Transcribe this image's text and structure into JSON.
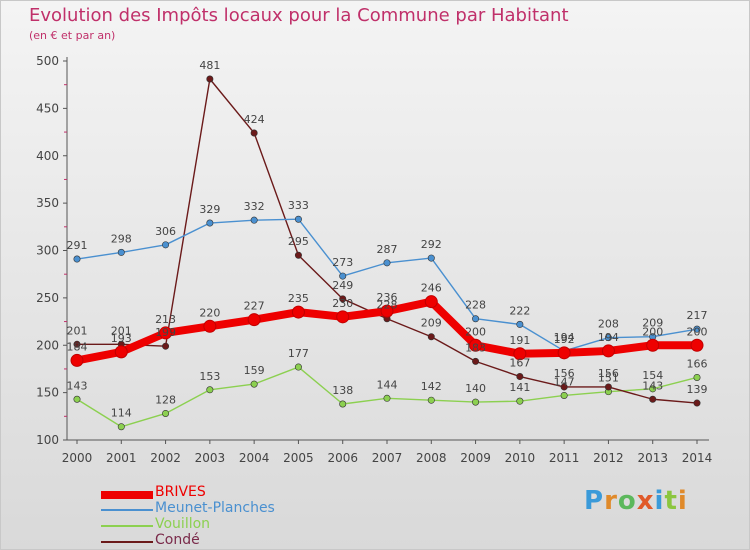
{
  "chart_data": {
    "type": "line",
    "title": "Evolution des Impôts locaux pour la Commune par Habitant",
    "subtitle": "(en € et par an)",
    "x": [
      "2000",
      "2001",
      "2002",
      "2003",
      "2004",
      "2005",
      "2006",
      "2007",
      "2008",
      "2009",
      "2010",
      "2011",
      "2012",
      "2013",
      "2014"
    ],
    "ylim": [
      100,
      500
    ],
    "yticks": [
      100,
      150,
      200,
      250,
      300,
      350,
      400,
      450,
      500
    ],
    "grid": false,
    "legend_position": "bottom-left",
    "series": [
      {
        "name": "BRIVES",
        "color": "#ee0000",
        "values": [
          184,
          193,
          213,
          220,
          227,
          235,
          230,
          236,
          246,
          200,
          191,
          192,
          194,
          200,
          200
        ]
      },
      {
        "name": "Meunet-Planches",
        "color": "#4a90d0",
        "values": [
          291,
          298,
          306,
          329,
          332,
          333,
          273,
          287,
          292,
          228,
          222,
          194,
          208,
          209,
          217
        ]
      },
      {
        "name": "Vouillon",
        "color": "#8cd050",
        "values": [
          143,
          114,
          128,
          153,
          159,
          177,
          138,
          144,
          142,
          140,
          141,
          147,
          151,
          154,
          166
        ]
      },
      {
        "name": "Condé",
        "color": "#6b1a1a",
        "values": [
          201,
          201,
          199,
          481,
          424,
          295,
          249,
          228,
          209,
          183,
          167,
          156,
          156,
          143,
          139
        ]
      }
    ]
  },
  "logo": {
    "text": "Proxiti",
    "letters": [
      "P",
      "r",
      "o",
      "x",
      "i",
      "t",
      "i"
    ],
    "colors": [
      "#3a9ad9",
      "#e08a2a",
      "#5cb85c",
      "#e05a2a",
      "#3a9ad9",
      "#8cc63f",
      "#e08a2a"
    ]
  }
}
